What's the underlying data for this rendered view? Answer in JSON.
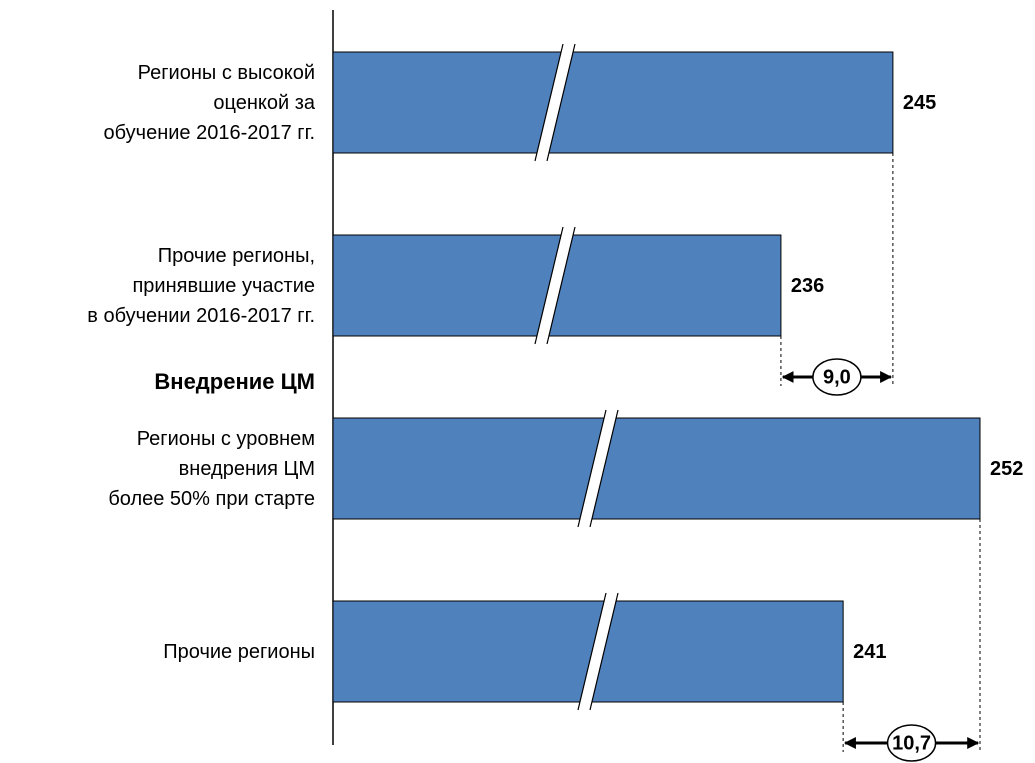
{
  "chart_data": {
    "type": "bar",
    "orientation": "horizontal",
    "categories": [
      "Регионы с высокой\nоценкой за\nобучение 2016-2017 гг.",
      "Прочие регионы,\nпринявшие участие\nв обучении 2016-2017 гг.",
      "Регионы с уровнем\nвнедрения ЦМ\nболее 50% при старте",
      "Прочие регионы"
    ],
    "values": [
      245,
      236,
      252,
      241
    ],
    "color": "#4f81bd",
    "xlim": [
      200,
      252
    ],
    "section_label": "Внедрение ЦМ",
    "differences": [
      {
        "value": 9.0,
        "label": "9,0"
      },
      {
        "value": 10.7,
        "label": "10,7"
      }
    ]
  }
}
